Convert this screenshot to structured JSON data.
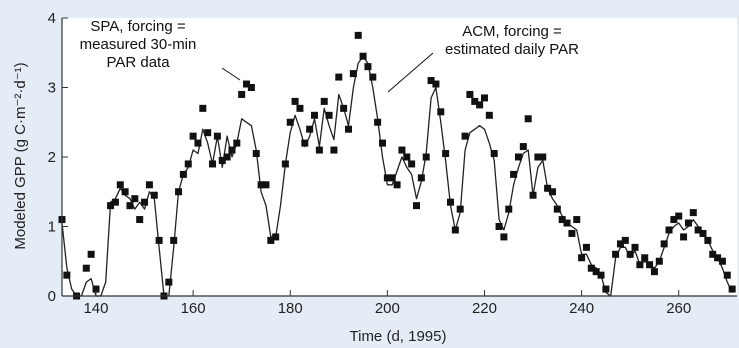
{
  "chart_data": {
    "type": "scatter",
    "title": "",
    "xlabel": "Time (d, 1995)",
    "ylabel": "Modeled GPP (g C·m⁻²·d⁻¹)",
    "xlim": [
      133,
      272
    ],
    "ylim": [
      0,
      4
    ],
    "x_ticks": [
      140,
      160,
      180,
      200,
      220,
      240,
      260
    ],
    "y_ticks": [
      0,
      1,
      2,
      3,
      4
    ],
    "grid": false,
    "legend": "none",
    "annotations": [
      {
        "lines": [
          "SPA, forcing =",
          "measured 30-min",
          "PAR data"
        ],
        "points_to": "square markers"
      },
      {
        "lines": [
          "ACM, forcing =",
          "estimated daily PAR"
        ],
        "points_to": "line"
      }
    ],
    "series": [
      {
        "style": "square-markers",
        "points": [
          [
            133,
            1.1
          ],
          [
            134,
            0.3
          ],
          [
            136,
            0.0
          ],
          [
            138,
            0.4
          ],
          [
            139,
            0.6
          ],
          [
            140,
            0.1
          ],
          [
            143,
            1.3
          ],
          [
            144,
            1.35
          ],
          [
            145,
            1.6
          ],
          [
            146,
            1.5
          ],
          [
            147,
            1.3
          ],
          [
            148,
            1.4
          ],
          [
            149,
            1.1
          ],
          [
            150,
            1.35
          ],
          [
            151,
            1.6
          ],
          [
            152,
            1.45
          ],
          [
            153,
            0.8
          ],
          [
            154,
            0.0
          ],
          [
            155,
            0.2
          ],
          [
            156,
            0.8
          ],
          [
            157,
            1.5
          ],
          [
            158,
            1.75
          ],
          [
            159,
            1.9
          ],
          [
            160,
            2.3
          ],
          [
            161,
            2.2
          ],
          [
            162,
            2.7
          ],
          [
            163,
            2.35
          ],
          [
            164,
            1.9
          ],
          [
            165,
            2.3
          ],
          [
            166,
            1.95
          ],
          [
            167,
            2.0
          ],
          [
            168,
            2.1
          ],
          [
            169,
            2.2
          ],
          [
            170,
            2.9
          ],
          [
            171,
            3.05
          ],
          [
            172,
            3.0
          ],
          [
            173,
            2.05
          ],
          [
            174,
            1.6
          ],
          [
            175,
            1.6
          ],
          [
            176,
            0.8
          ],
          [
            177,
            0.85
          ],
          [
            179,
            1.9
          ],
          [
            180,
            2.5
          ],
          [
            181,
            2.8
          ],
          [
            182,
            2.7
          ],
          [
            183,
            2.2
          ],
          [
            184,
            2.4
          ],
          [
            185,
            2.6
          ],
          [
            186,
            2.1
          ],
          [
            187,
            2.8
          ],
          [
            188,
            2.6
          ],
          [
            189,
            2.1
          ],
          [
            190,
            3.15
          ],
          [
            191,
            2.7
          ],
          [
            192,
            2.4
          ],
          [
            193,
            3.2
          ],
          [
            194,
            3.75
          ],
          [
            195,
            3.45
          ],
          [
            196,
            3.3
          ],
          [
            197,
            3.15
          ],
          [
            198,
            2.5
          ],
          [
            199,
            2.2
          ],
          [
            200,
            1.7
          ],
          [
            201,
            1.7
          ],
          [
            202,
            1.6
          ],
          [
            203,
            2.1
          ],
          [
            204,
            2.0
          ],
          [
            205,
            1.9
          ],
          [
            206,
            1.3
          ],
          [
            207,
            1.7
          ],
          [
            208,
            2.0
          ],
          [
            209,
            3.1
          ],
          [
            210,
            3.05
          ],
          [
            211,
            2.65
          ],
          [
            212,
            2.05
          ],
          [
            213,
            1.35
          ],
          [
            214,
            0.95
          ],
          [
            215,
            1.25
          ],
          [
            216,
            2.3
          ],
          [
            217,
            2.9
          ],
          [
            218,
            2.8
          ],
          [
            219,
            2.75
          ],
          [
            220,
            2.85
          ],
          [
            221,
            2.6
          ],
          [
            222,
            2.05
          ],
          [
            223,
            1.0
          ],
          [
            224,
            0.85
          ],
          [
            225,
            1.25
          ],
          [
            226,
            1.75
          ],
          [
            227,
            2.0
          ],
          [
            228,
            2.15
          ],
          [
            229,
            2.55
          ],
          [
            230,
            1.45
          ],
          [
            231,
            2.0
          ],
          [
            232,
            2.0
          ],
          [
            233,
            1.55
          ],
          [
            234,
            1.5
          ],
          [
            235,
            1.25
          ],
          [
            236,
            1.1
          ],
          [
            237,
            1.05
          ],
          [
            238,
            0.9
          ],
          [
            239,
            1.1
          ],
          [
            240,
            0.55
          ],
          [
            241,
            0.7
          ],
          [
            242,
            0.4
          ],
          [
            243,
            0.35
          ],
          [
            244,
            0.3
          ],
          [
            245,
            0.1
          ],
          [
            247,
            0.6
          ],
          [
            248,
            0.75
          ],
          [
            249,
            0.8
          ],
          [
            250,
            0.6
          ],
          [
            251,
            0.7
          ],
          [
            252,
            0.45
          ],
          [
            253,
            0.55
          ],
          [
            254,
            0.45
          ],
          [
            255,
            0.35
          ],
          [
            256,
            0.5
          ],
          [
            257,
            0.75
          ],
          [
            258,
            0.95
          ],
          [
            259,
            1.1
          ],
          [
            260,
            1.15
          ],
          [
            261,
            0.85
          ],
          [
            262,
            1.05
          ],
          [
            263,
            1.2
          ],
          [
            264,
            0.95
          ],
          [
            265,
            0.9
          ],
          [
            266,
            0.8
          ],
          [
            267,
            0.6
          ],
          [
            268,
            0.55
          ],
          [
            269,
            0.5
          ],
          [
            270,
            0.3
          ],
          [
            271,
            0.1
          ]
        ]
      },
      {
        "style": "line",
        "points": [
          [
            133,
            1.05
          ],
          [
            134,
            0.4
          ],
          [
            135,
            0.1
          ],
          [
            136,
            0.0
          ],
          [
            137,
            0.0
          ],
          [
            138,
            0.2
          ],
          [
            139,
            0.25
          ],
          [
            140,
            0.0
          ],
          [
            141,
            0.0
          ],
          [
            142,
            0.2
          ],
          [
            143,
            1.35
          ],
          [
            144,
            1.4
          ],
          [
            145,
            1.55
          ],
          [
            146,
            1.45
          ],
          [
            147,
            1.4
          ],
          [
            148,
            1.25
          ],
          [
            149,
            1.35
          ],
          [
            150,
            1.25
          ],
          [
            151,
            1.5
          ],
          [
            152,
            1.4
          ],
          [
            153,
            0.7
          ],
          [
            154,
            0.0
          ],
          [
            155,
            0.0
          ],
          [
            156,
            0.7
          ],
          [
            157,
            1.5
          ],
          [
            158,
            1.75
          ],
          [
            159,
            1.85
          ],
          [
            160,
            2.1
          ],
          [
            161,
            2.05
          ],
          [
            162,
            2.4
          ],
          [
            163,
            2.2
          ],
          [
            164,
            1.9
          ],
          [
            165,
            2.3
          ],
          [
            166,
            1.85
          ],
          [
            167,
            2.3
          ],
          [
            168,
            2.0
          ],
          [
            169,
            2.2
          ],
          [
            170,
            2.55
          ],
          [
            171,
            2.5
          ],
          [
            172,
            2.45
          ],
          [
            173,
            2.1
          ],
          [
            174,
            1.5
          ],
          [
            175,
            1.3
          ],
          [
            176,
            0.85
          ],
          [
            177,
            0.85
          ],
          [
            178,
            1.3
          ],
          [
            179,
            1.9
          ],
          [
            180,
            2.35
          ],
          [
            181,
            2.6
          ],
          [
            182,
            2.4
          ],
          [
            183,
            2.15
          ],
          [
            184,
            2.3
          ],
          [
            185,
            2.55
          ],
          [
            186,
            2.15
          ],
          [
            187,
            2.7
          ],
          [
            188,
            2.45
          ],
          [
            189,
            2.25
          ],
          [
            190,
            2.9
          ],
          [
            191,
            2.7
          ],
          [
            192,
            2.45
          ],
          [
            193,
            3.0
          ],
          [
            194,
            3.35
          ],
          [
            195,
            3.45
          ],
          [
            196,
            3.35
          ],
          [
            197,
            3.0
          ],
          [
            198,
            2.55
          ],
          [
            199,
            2.0
          ],
          [
            200,
            1.6
          ],
          [
            201,
            1.6
          ],
          [
            202,
            1.8
          ],
          [
            203,
            2.0
          ],
          [
            204,
            1.85
          ],
          [
            205,
            1.75
          ],
          [
            206,
            1.4
          ],
          [
            207,
            1.65
          ],
          [
            208,
            2.05
          ],
          [
            209,
            2.85
          ],
          [
            210,
            3.0
          ],
          [
            211,
            2.5
          ],
          [
            212,
            1.95
          ],
          [
            213,
            1.3
          ],
          [
            214,
            0.95
          ],
          [
            215,
            1.2
          ],
          [
            216,
            2.1
          ],
          [
            217,
            2.35
          ],
          [
            218,
            2.4
          ],
          [
            219,
            2.45
          ],
          [
            220,
            2.4
          ],
          [
            221,
            2.2
          ],
          [
            222,
            1.95
          ],
          [
            223,
            1.1
          ],
          [
            224,
            0.95
          ],
          [
            225,
            1.2
          ],
          [
            226,
            1.6
          ],
          [
            227,
            1.85
          ],
          [
            228,
            2.05
          ],
          [
            229,
            2.1
          ],
          [
            230,
            1.45
          ],
          [
            231,
            1.85
          ],
          [
            232,
            1.95
          ],
          [
            233,
            1.55
          ],
          [
            234,
            1.4
          ],
          [
            235,
            1.3
          ],
          [
            236,
            1.15
          ],
          [
            237,
            1.05
          ],
          [
            238,
            1.0
          ],
          [
            239,
            0.95
          ],
          [
            240,
            0.6
          ],
          [
            241,
            0.6
          ],
          [
            242,
            0.45
          ],
          [
            243,
            0.4
          ],
          [
            244,
            0.3
          ],
          [
            245,
            0.05
          ],
          [
            246,
            0.0
          ],
          [
            247,
            0.55
          ],
          [
            248,
            0.7
          ],
          [
            249,
            0.7
          ],
          [
            250,
            0.55
          ],
          [
            251,
            0.65
          ],
          [
            252,
            0.45
          ],
          [
            253,
            0.5
          ],
          [
            254,
            0.45
          ],
          [
            255,
            0.4
          ],
          [
            256,
            0.5
          ],
          [
            257,
            0.7
          ],
          [
            258,
            0.9
          ],
          [
            259,
            1.0
          ],
          [
            260,
            1.05
          ],
          [
            261,
            0.95
          ],
          [
            262,
            1.0
          ],
          [
            263,
            1.1
          ],
          [
            264,
            1.0
          ],
          [
            265,
            0.9
          ],
          [
            266,
            0.8
          ],
          [
            267,
            0.65
          ],
          [
            268,
            0.55
          ],
          [
            269,
            0.4
          ],
          [
            270,
            0.2
          ],
          [
            271,
            0.05
          ]
        ]
      }
    ]
  }
}
